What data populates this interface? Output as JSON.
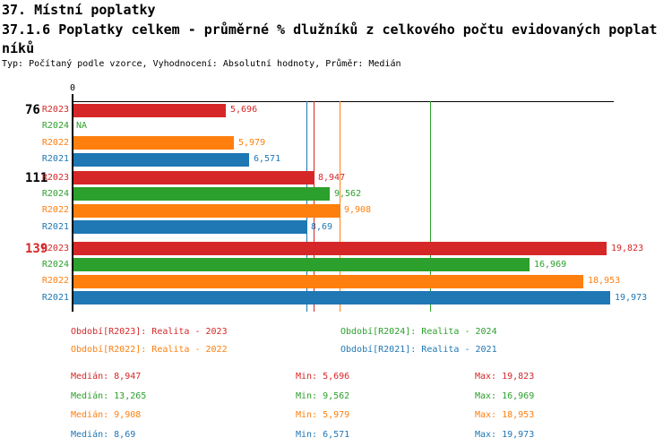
{
  "header": {
    "title1": "37. Místní poplatky",
    "title2_line1": "37.1.6 Poplatky celkem - průměrné % dlužníků z celkového počtu evidovaných poplat",
    "title2_line2": "níků",
    "meta": "Typ: Počítaný podle vzorce, Vyhodnocení: Absolutní hodnoty, Průměr: Medián"
  },
  "chart_data": {
    "type": "bar",
    "orientation": "horizontal",
    "xlim": [
      0,
      20.1
    ],
    "x_ticks": [
      "0"
    ],
    "grid": "median-guides-behind-bars",
    "group_labels": [
      "76",
      "111",
      "139"
    ],
    "group_label_colors": [
      "#000000",
      "#000000",
      "#d62728"
    ],
    "series": [
      {
        "name": "R2023",
        "color": "#d62728",
        "median": 8.947,
        "values": [
          5.696,
          8.947,
          19.823
        ],
        "displays": [
          "5,696",
          "8,947",
          "19,823"
        ]
      },
      {
        "name": "R2024",
        "color": "#2ca02c",
        "median": 13.265,
        "values": [
          null,
          9.562,
          16.969
        ],
        "displays": [
          "NA",
          "9,562",
          "16,969"
        ]
      },
      {
        "name": "R2022",
        "color": "#ff7f0e",
        "median": 9.908,
        "values": [
          5.979,
          9.908,
          18.953
        ],
        "displays": [
          "5,979",
          "9,908",
          "18,953"
        ]
      },
      {
        "name": "R2021",
        "color": "#1f77b4",
        "median": 8.69,
        "values": [
          6.571,
          8.69,
          19.973
        ],
        "displays": [
          "6,571",
          "8,69",
          "19,973"
        ]
      }
    ]
  },
  "legend": {
    "items": [
      {
        "text": "Období[R2023]: Realita - 2023",
        "color": "#d62728",
        "col": 0,
        "row": 0
      },
      {
        "text": "Období[R2024]: Realita - 2024",
        "color": "#2ca02c",
        "col": 1,
        "row": 0
      },
      {
        "text": "Období[R2022]: Realita - 2022",
        "color": "#ff7f0e",
        "col": 0,
        "row": 1
      },
      {
        "text": "Období[R2021]: Realita - 2021",
        "color": "#1f77b4",
        "col": 1,
        "row": 1
      }
    ]
  },
  "stats": {
    "labels": {
      "median": "Medián",
      "min": "Min",
      "max": "Max"
    },
    "rows": [
      {
        "color": "#d62728",
        "median": "8,947",
        "min": "5,696",
        "max": "19,823"
      },
      {
        "color": "#2ca02c",
        "median": "13,265",
        "min": "9,562",
        "max": "16,969"
      },
      {
        "color": "#ff7f0e",
        "median": "9,908",
        "min": "5,979",
        "max": "18,953"
      },
      {
        "color": "#1f77b4",
        "median": "8,69",
        "min": "6,571",
        "max": "19,973"
      }
    ]
  }
}
